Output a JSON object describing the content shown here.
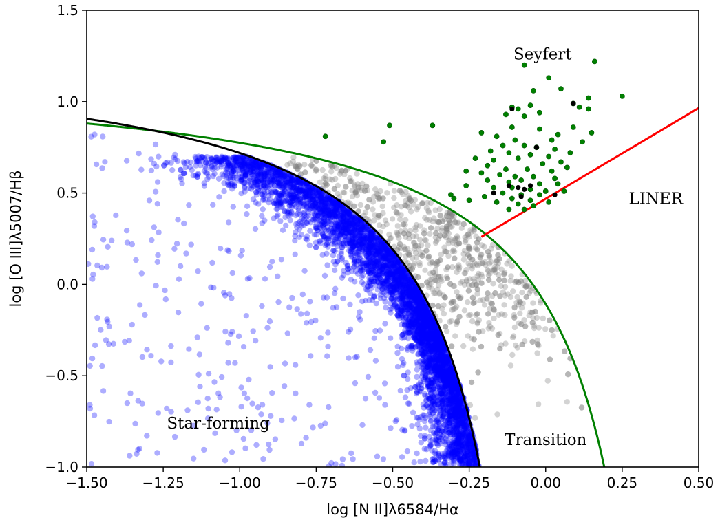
{
  "chart_data": {
    "type": "scatter",
    "title": "",
    "xlabel": "log [N II]λ6584/Hα",
    "ylabel": "log [O III]λ5007/Hβ",
    "xlim": [
      -1.5,
      0.5
    ],
    "ylim": [
      -1.0,
      1.5
    ],
    "xticks": [
      -1.5,
      -1.25,
      -1.0,
      -0.75,
      -0.5,
      -0.25,
      0.0,
      0.25,
      0.5
    ],
    "yticks": [
      -1.0,
      -0.5,
      0.0,
      0.5,
      1.0,
      1.5
    ],
    "xtick_labels": [
      "−1.50",
      "−1.25",
      "−1.00",
      "−0.75",
      "−0.50",
      "−0.25",
      "0.00",
      "0.25",
      "0.50"
    ],
    "ytick_labels": [
      "−1.0",
      "−0.5",
      "0.0",
      "0.5",
      "1.0",
      "1.5"
    ],
    "grid": false,
    "region_labels": [
      {
        "text": "Seyfert",
        "x": -0.01,
        "y": 1.23
      },
      {
        "text": "LINER",
        "x": 0.36,
        "y": 0.44
      },
      {
        "text": "Star-forming",
        "x": -1.07,
        "y": -0.79
      },
      {
        "text": "Transition",
        "x": 0.0,
        "y": -0.88
      }
    ],
    "curves": [
      {
        "kind": "kewley",
        "color": "#008000",
        "description": "0.61/(x-0.47)+1.19"
      },
      {
        "kind": "kauffmann",
        "color": "#000000",
        "description": "0.61/(x-0.05)+1.30"
      },
      {
        "kind": "line",
        "color": "#ff0000",
        "x": [
          -0.21,
          0.5
        ],
        "y": [
          0.26,
          0.965
        ]
      }
    ],
    "series_colors": {
      "star_forming": "#0000ff",
      "composite": "#808080",
      "agn": "#008000",
      "agn_dark": "#000000"
    },
    "agn_points": [
      [
        -0.07,
        1.2
      ],
      [
        0.16,
        1.22
      ],
      [
        -0.04,
        1.06
      ],
      [
        0.01,
        1.13
      ],
      [
        0.25,
        1.03
      ],
      [
        0.14,
        1.02
      ],
      [
        -0.11,
        0.97
      ],
      [
        -0.09,
        0.96
      ],
      [
        0.09,
        0.99
      ],
      [
        -0.05,
        0.98
      ],
      [
        -0.13,
        0.93
      ],
      [
        -0.07,
        0.92
      ],
      [
        0.05,
        1.07
      ],
      [
        0.11,
        0.97
      ],
      [
        -0.02,
        0.94
      ],
      [
        0.14,
        0.96
      ],
      [
        -0.37,
        0.87
      ],
      [
        -0.51,
        0.87
      ],
      [
        -0.72,
        0.81
      ],
      [
        -0.53,
        0.78
      ],
      [
        -0.11,
        0.86
      ],
      [
        -0.02,
        0.85
      ],
      [
        0.09,
        0.86
      ],
      [
        -0.21,
        0.83
      ],
      [
        -0.16,
        0.81
      ],
      [
        0.04,
        0.82
      ],
      [
        0.15,
        0.83
      ],
      [
        -0.1,
        0.79
      ],
      [
        0.02,
        0.79
      ],
      [
        0.12,
        0.78
      ],
      [
        -0.14,
        0.76
      ],
      [
        -0.07,
        0.76
      ],
      [
        -0.03,
        0.75
      ],
      [
        0.03,
        0.74
      ],
      [
        -0.18,
        0.73
      ],
      [
        -0.12,
        0.72
      ],
      [
        -0.05,
        0.71
      ],
      [
        0.01,
        0.7
      ],
      [
        0.08,
        0.72
      ],
      [
        -0.23,
        0.69
      ],
      [
        -0.17,
        0.68
      ],
      [
        -0.09,
        0.69
      ],
      [
        0.05,
        0.67
      ],
      [
        -0.01,
        0.66
      ],
      [
        -0.19,
        0.65
      ],
      [
        -0.13,
        0.63
      ],
      [
        -0.06,
        0.63
      ],
      [
        0.02,
        0.62
      ],
      [
        0.07,
        0.64
      ],
      [
        -0.26,
        0.62
      ],
      [
        -0.21,
        0.61
      ],
      [
        -0.15,
        0.6
      ],
      [
        -0.1,
        0.59
      ],
      [
        -0.04,
        0.59
      ],
      [
        0.03,
        0.58
      ],
      [
        -0.19,
        0.57
      ],
      [
        -0.12,
        0.56
      ],
      [
        -0.08,
        0.57
      ],
      [
        -0.02,
        0.55
      ],
      [
        0.04,
        0.55
      ],
      [
        -0.26,
        0.54
      ],
      [
        -0.17,
        0.53
      ],
      [
        -0.11,
        0.53
      ],
      [
        -0.05,
        0.52
      ],
      [
        0.0,
        0.51
      ],
      [
        0.06,
        0.51
      ],
      [
        -0.14,
        0.5
      ],
      [
        -0.08,
        0.49
      ],
      [
        -0.02,
        0.49
      ],
      [
        -0.2,
        0.48
      ],
      [
        -0.11,
        0.47
      ],
      [
        -0.05,
        0.46
      ],
      [
        -0.25,
        0.46
      ],
      [
        -0.16,
        0.45
      ],
      [
        -0.09,
        0.44
      ],
      [
        -0.04,
        0.43
      ],
      [
        -0.31,
        0.49
      ],
      [
        -0.3,
        0.47
      ],
      [
        -0.12,
        0.41
      ],
      [
        -0.07,
        0.41
      ],
      [
        0.01,
        0.45
      ]
    ],
    "agn_dark_points": [
      [
        -0.11,
        0.96
      ],
      [
        0.09,
        0.99
      ],
      [
        -0.03,
        0.75
      ],
      [
        -0.09,
        0.53
      ],
      [
        -0.12,
        0.54
      ],
      [
        -0.05,
        0.54
      ],
      [
        -0.07,
        0.52
      ],
      [
        0.03,
        0.49
      ],
      [
        -0.17,
        0.5
      ],
      [
        -0.08,
        0.48
      ]
    ]
  }
}
